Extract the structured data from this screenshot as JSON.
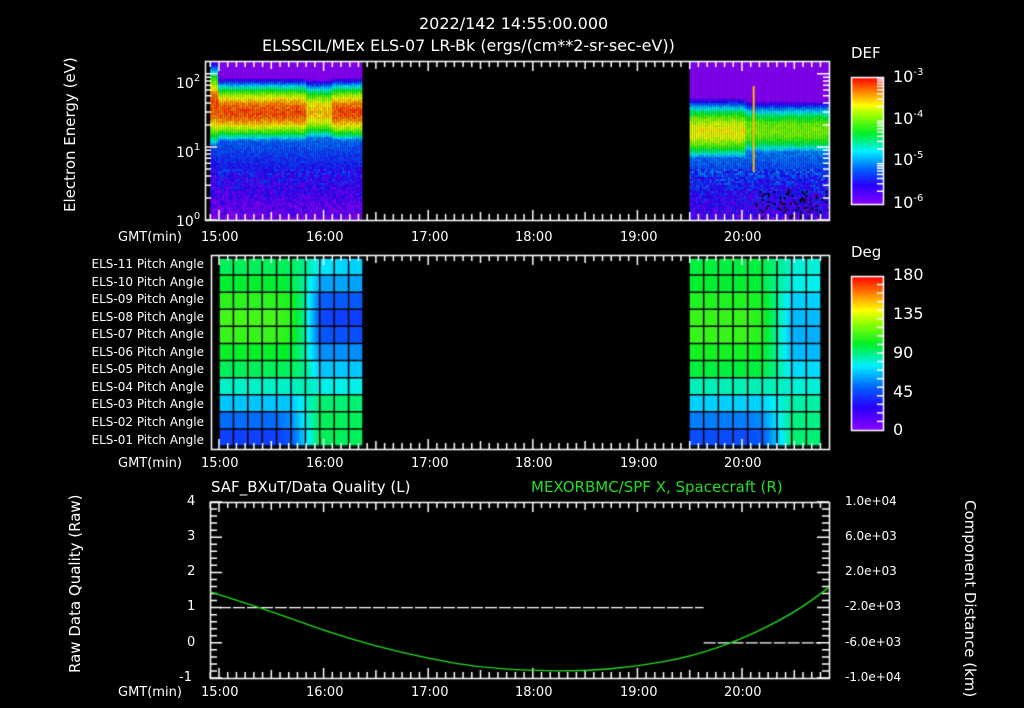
{
  "header": {
    "datetime": "2022/142 14:55:00.000",
    "subtitle": "ELSSCIL/MEx ELS-07 LR-Bk  (ergs/(cm**2-sr-sec-eV))"
  },
  "time_axis": {
    "label": "GMT(min)",
    "ticks": [
      "15:00",
      "16:00",
      "17:00",
      "18:00",
      "19:00",
      "20:00"
    ]
  },
  "chart_data": [
    {
      "type": "heatmap",
      "title": "ELSSCIL/MEx ELS-07 LR-Bk",
      "ylabel": "Electron Energy (eV)",
      "yscale": "log",
      "ylim": [
        1,
        150
      ],
      "y_ticks": [
        "10^0",
        "10^1",
        "10^2"
      ],
      "x_range": [
        "14:55",
        "20:50"
      ],
      "data_segments": [
        {
          "start": "14:55",
          "end": "16:22"
        },
        {
          "start": "19:30",
          "end": "20:50"
        }
      ],
      "gap": {
        "start": "16:22",
        "end": "19:30"
      },
      "colorbar": {
        "label": "DEF",
        "scale": "log",
        "ticks": [
          "10^-3",
          "10^-4",
          "10^-5",
          "10^-6"
        ],
        "range": [
          1e-06,
          0.001
        ]
      },
      "features": {
        "segment1_peak_energy_eV": [
          18,
          60
        ],
        "segment1_peak_level": "~5e-4 (red)",
        "segment2_peak_energy_eV": [
          8,
          30
        ],
        "segment2_peak_level": "~1.5e-4 (yellow)"
      }
    },
    {
      "type": "heatmap",
      "title": "Pitch Angle",
      "rows": [
        "ELS-11 Pitch Angle",
        "ELS-10 Pitch Angle",
        "ELS-09 Pitch Angle",
        "ELS-08 Pitch Angle",
        "ELS-07 Pitch Angle",
        "ELS-06 Pitch Angle",
        "ELS-05 Pitch Angle",
        "ELS-04 Pitch Angle",
        "ELS-03 Pitch Angle",
        "ELS-02 Pitch Angle",
        "ELS-01 Pitch Angle"
      ],
      "colorbar": {
        "label": "Deg",
        "ticks": [
          "180",
          "135",
          "90",
          "45",
          "0"
        ],
        "range": [
          0,
          180
        ]
      },
      "segment1_values_deg": [
        [
          95,
          95,
          95,
          95,
          95,
          95,
          88,
          75,
          72,
          70
        ],
        [
          100,
          100,
          100,
          100,
          100,
          98,
          85,
          62,
          62,
          62
        ],
        [
          108,
          108,
          108,
          108,
          108,
          105,
          85,
          50,
          48,
          48
        ],
        [
          112,
          112,
          112,
          112,
          112,
          108,
          85,
          45,
          42,
          42
        ],
        [
          110,
          110,
          110,
          110,
          110,
          106,
          85,
          48,
          46,
          46
        ],
        [
          102,
          102,
          102,
          102,
          102,
          100,
          85,
          58,
          58,
          58
        ],
        [
          95,
          95,
          95,
          95,
          95,
          95,
          88,
          68,
          68,
          68
        ],
        [
          82,
          82,
          82,
          82,
          82,
          82,
          85,
          78,
          78,
          78
        ],
        [
          68,
          68,
          68,
          68,
          68,
          68,
          80,
          92,
          92,
          92
        ],
        [
          52,
          52,
          52,
          52,
          52,
          58,
          78,
          95,
          95,
          95
        ],
        [
          42,
          42,
          42,
          42,
          42,
          48,
          72,
          95,
          95,
          95
        ]
      ],
      "segment2_values_deg": [
        [
          98,
          98,
          98,
          98,
          98,
          98,
          90,
          80,
          80
        ],
        [
          100,
          100,
          100,
          100,
          100,
          98,
          88,
          78,
          78
        ],
        [
          106,
          106,
          106,
          106,
          106,
          104,
          88,
          70,
          70
        ],
        [
          110,
          110,
          110,
          110,
          110,
          106,
          88,
          66,
          66
        ],
        [
          110,
          110,
          110,
          110,
          110,
          106,
          86,
          64,
          64
        ],
        [
          104,
          104,
          104,
          104,
          104,
          102,
          86,
          66,
          66
        ],
        [
          98,
          98,
          98,
          98,
          98,
          98,
          88,
          72,
          72
        ],
        [
          84,
          84,
          84,
          84,
          84,
          84,
          84,
          80,
          80
        ],
        [
          70,
          70,
          70,
          70,
          70,
          70,
          78,
          86,
          86
        ],
        [
          55,
          55,
          55,
          55,
          55,
          58,
          74,
          90,
          90
        ],
        [
          45,
          45,
          45,
          45,
          45,
          48,
          68,
          92,
          92
        ]
      ]
    },
    {
      "type": "line",
      "title_left": "SAF_BXuT/Data Quality (L)",
      "title_right": "MEXORBMC/SPF X, Spacecraft (R)",
      "ylabel_left": "Raw Data Quality (Raw)",
      "ylabel_right": "Component Distance (km)",
      "ylim_left": [
        -1,
        4
      ],
      "yticks_left": [
        "4",
        "3",
        "2",
        "1",
        "0",
        "-1"
      ],
      "ylim_right": [
        -10000,
        10000
      ],
      "yticks_right": [
        "1.0e+04",
        "6.0e+03",
        "2.0e+03",
        "-2.0e+03",
        "-6.0e+03",
        "-1.0e+04"
      ],
      "series": [
        {
          "name": "SAF_BXuT/Data Quality",
          "axis": "left",
          "color": "#ffffff",
          "style": "dashed",
          "segments": [
            {
              "x": [
                "15:00",
                "19:38"
              ],
              "y": 1
            },
            {
              "x": [
                "19:38",
                "20:45"
              ],
              "y": 0
            }
          ]
        },
        {
          "name": "MEXORBMC/SPF X, Spacecraft",
          "axis": "right",
          "color": "#22dd22",
          "x": [
            "14:55",
            "15:30",
            "16:00",
            "16:30",
            "17:00",
            "17:30",
            "18:00",
            "18:30",
            "19:00",
            "19:30",
            "20:00",
            "20:30",
            "20:50"
          ],
          "y": [
            -200,
            -2400,
            -4600,
            -6400,
            -7800,
            -8800,
            -9200,
            -9200,
            -8700,
            -7600,
            -5600,
            -2600,
            300
          ]
        }
      ]
    }
  ]
}
